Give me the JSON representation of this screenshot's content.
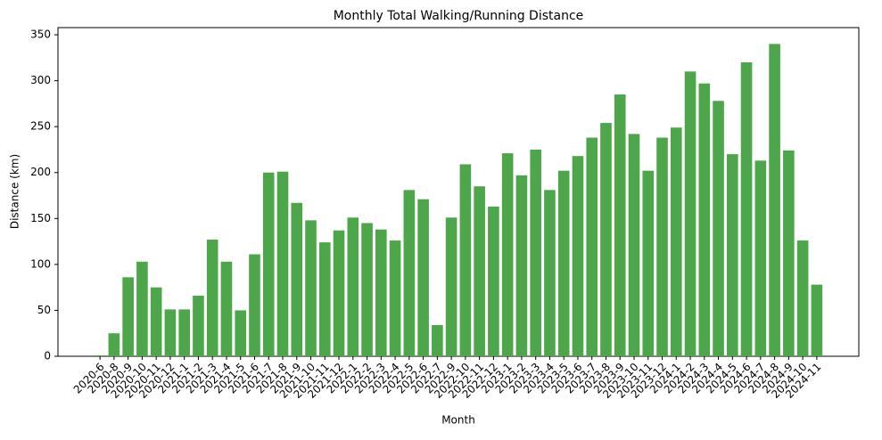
{
  "chart_data": {
    "type": "bar",
    "title": "Monthly Total Walking/Running Distance",
    "x_label": "Month",
    "y_label": "Distance (km)",
    "categories": [
      "2020-6",
      "2020-8",
      "2020-9",
      "2020-10",
      "2020-11",
      "2020-12",
      "2021-1",
      "2021-2",
      "2021-3",
      "2021-4",
      "2021-5",
      "2021-6",
      "2021-7",
      "2021-8",
      "2021-9",
      "2021-10",
      "2021-11",
      "2021-12",
      "2022-1",
      "2022-2",
      "2022-3",
      "2022-4",
      "2022-5",
      "2022-6",
      "2022-7",
      "2022-9",
      "2022-10",
      "2022-11",
      "2022-12",
      "2023-1",
      "2023-2",
      "2023-3",
      "2023-4",
      "2023-5",
      "2023-6",
      "2023-7",
      "2023-8",
      "2023-9",
      "2023-10",
      "2023-11",
      "2023-12",
      "2024-1",
      "2024-2",
      "2024-3",
      "2024-4",
      "2024-5",
      "2024-6",
      "2024-7",
      "2024-8",
      "2024-9",
      "2024-10",
      "2024-11"
    ],
    "values": [
      1,
      25,
      86,
      103,
      75,
      51,
      51,
      66,
      127,
      103,
      50,
      111,
      200,
      201,
      167,
      148,
      124,
      137,
      151,
      145,
      138,
      126,
      181,
      171,
      34,
      151,
      209,
      185,
      163,
      221,
      197,
      225,
      181,
      202,
      218,
      238,
      254,
      285,
      242,
      202,
      238,
      249,
      310,
      297,
      278,
      220,
      320,
      213,
      340,
      224,
      126,
      78
    ],
    "color": "#4ea64a",
    "ylim": [
      0,
      357.8
    ],
    "yticks": [
      0,
      50,
      100,
      150,
      200,
      250,
      300,
      350
    ],
    "grid": false
  }
}
